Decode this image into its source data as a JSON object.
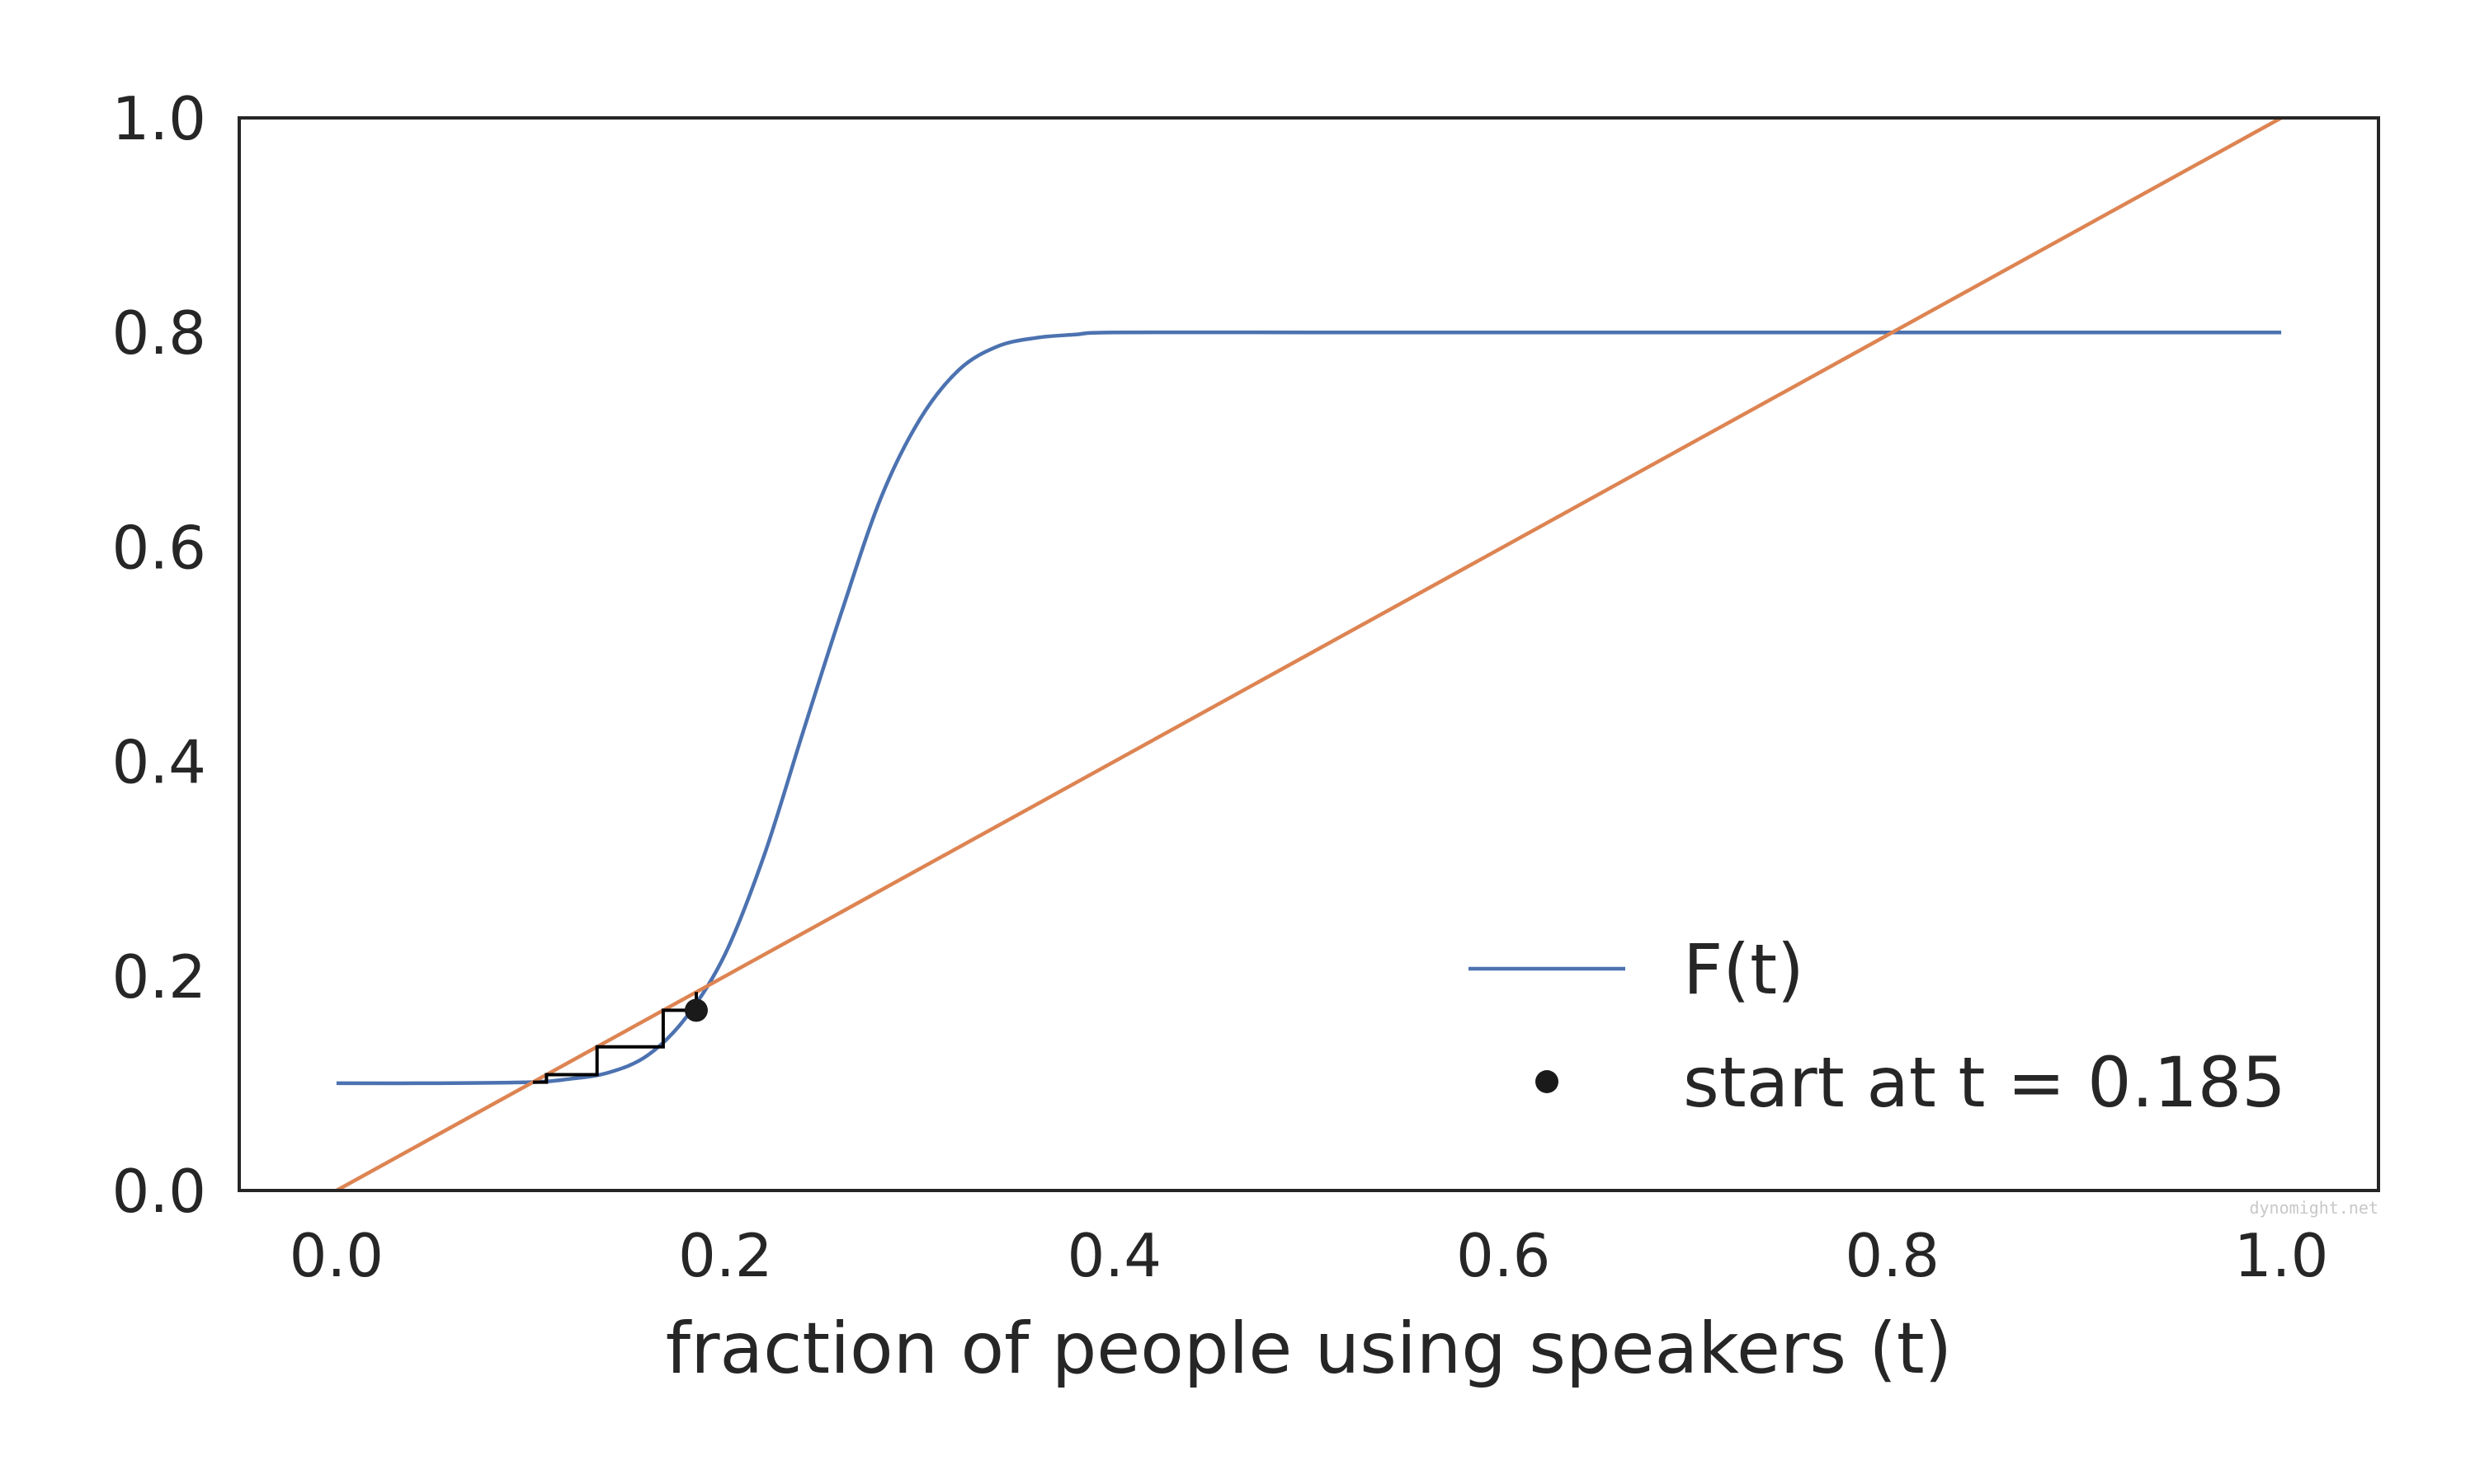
{
  "chart_data": {
    "type": "line",
    "title": "",
    "xlabel": "fraction of people using speakers (t)",
    "ylabel": "",
    "xlim": [
      -0.05,
      1.05
    ],
    "ylim": [
      0.0,
      1.0
    ],
    "x_ticks": [
      0.0,
      0.2,
      0.4,
      0.6,
      0.8,
      1.0
    ],
    "y_ticks": [
      0.0,
      0.2,
      0.4,
      0.6,
      0.8,
      1.0
    ],
    "x_tick_labels": [
      "0.0",
      "0.2",
      "0.4",
      "0.6",
      "0.8",
      "1.0"
    ],
    "y_tick_labels": [
      "0.0",
      "0.2",
      "0.4",
      "0.6",
      "0.8",
      "1.0"
    ],
    "grid": false,
    "legend_position": "bottom-right",
    "series": [
      {
        "name": "F(t)",
        "color": "#4c72b0",
        "x": [
          0.0,
          0.05,
          0.1,
          0.12,
          0.14,
          0.16,
          0.18,
          0.2,
          0.22,
          0.24,
          0.26,
          0.28,
          0.3,
          0.32,
          0.34,
          0.36,
          0.38,
          0.4,
          0.5,
          0.6,
          0.7,
          0.8,
          0.9,
          1.0
        ],
        "y": [
          0.1,
          0.1,
          0.101,
          0.104,
          0.11,
          0.126,
          0.162,
          0.221,
          0.313,
          0.428,
          0.541,
          0.646,
          0.719,
          0.765,
          0.787,
          0.795,
          0.798,
          0.8,
          0.8,
          0.8,
          0.8,
          0.8,
          0.8,
          0.8
        ]
      },
      {
        "name": "",
        "color": "#dd8452",
        "x": [
          0.0,
          1.0
        ],
        "y": [
          0.0,
          1.0
        ]
      }
    ],
    "cobweb": {
      "color": "#000000",
      "x": [
        0.185,
        0.185,
        0.168,
        0.168,
        0.134,
        0.134,
        0.108,
        0.108,
        0.101
      ],
      "y": [
        0.185,
        0.168,
        0.168,
        0.134,
        0.134,
        0.108,
        0.108,
        0.101,
        0.101
      ]
    },
    "start_point": {
      "name": "start at t = 0.185",
      "color": "#1a1a1a",
      "x": 0.185,
      "y": 0.168
    },
    "legend": [
      {
        "label": "F(t)",
        "marker": "line",
        "color": "#4c72b0"
      },
      {
        "label": "start at t = 0.185",
        "marker": "dot",
        "color": "#1a1a1a"
      }
    ]
  },
  "watermark": "dynomight.net"
}
